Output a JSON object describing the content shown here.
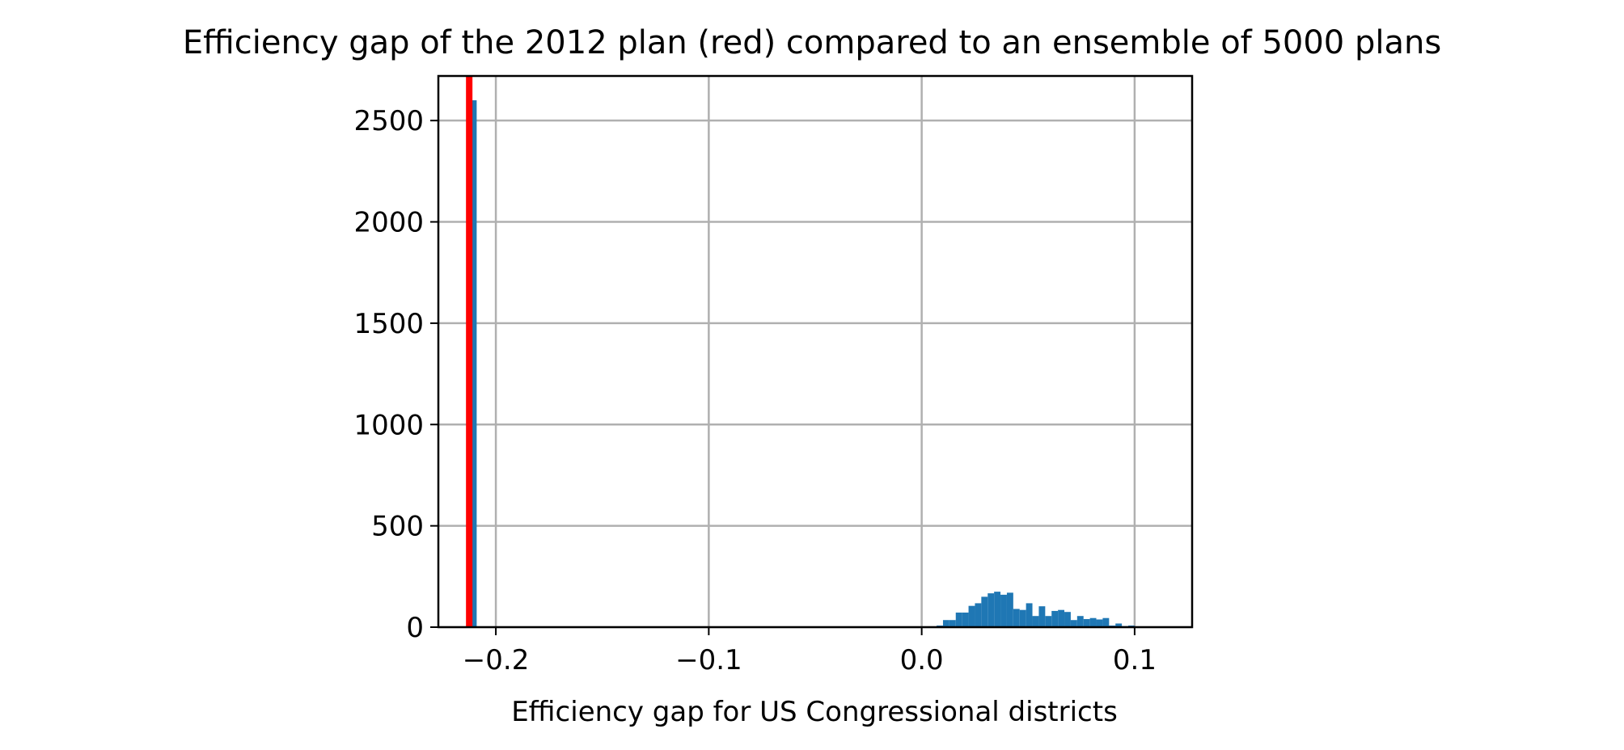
{
  "chart_data": {
    "type": "bar",
    "title": "Efficiency gap of the 2012 plan (red) compared to an ensemble of 5000 plans",
    "xlabel": "Efficiency gap for US Congressional districts",
    "ylabel": "",
    "xlim": [
      -0.227,
      0.127
    ],
    "ylim": [
      0,
      2720
    ],
    "xticks": [
      -0.2,
      -0.1,
      0.0,
      0.1
    ],
    "xtick_labels": [
      "−0.2",
      "−0.1",
      "0.0",
      "0.1"
    ],
    "yticks": [
      0,
      500,
      1000,
      1500,
      2000,
      2500
    ],
    "ytick_labels": [
      "0",
      "500",
      "1000",
      "1500",
      "2000",
      "2500"
    ],
    "grid": true,
    "bin_width": 0.003,
    "bins": [
      {
        "x": -0.2105,
        "count": 2600
      },
      {
        "x": 0.0085,
        "count": 8
      },
      {
        "x": 0.0115,
        "count": 35
      },
      {
        "x": 0.0145,
        "count": 35
      },
      {
        "x": 0.0175,
        "count": 72
      },
      {
        "x": 0.0205,
        "count": 72
      },
      {
        "x": 0.0235,
        "count": 105
      },
      {
        "x": 0.0265,
        "count": 118
      },
      {
        "x": 0.0295,
        "count": 150
      },
      {
        "x": 0.0325,
        "count": 167
      },
      {
        "x": 0.0355,
        "count": 175
      },
      {
        "x": 0.0385,
        "count": 160
      },
      {
        "x": 0.0415,
        "count": 170
      },
      {
        "x": 0.0445,
        "count": 90
      },
      {
        "x": 0.0475,
        "count": 85
      },
      {
        "x": 0.0505,
        "count": 118
      },
      {
        "x": 0.0535,
        "count": 55
      },
      {
        "x": 0.0565,
        "count": 103
      },
      {
        "x": 0.0595,
        "count": 55
      },
      {
        "x": 0.0625,
        "count": 80
      },
      {
        "x": 0.0655,
        "count": 85
      },
      {
        "x": 0.0685,
        "count": 75
      },
      {
        "x": 0.0715,
        "count": 35
      },
      {
        "x": 0.0745,
        "count": 55
      },
      {
        "x": 0.0775,
        "count": 40
      },
      {
        "x": 0.0805,
        "count": 45
      },
      {
        "x": 0.0835,
        "count": 38
      },
      {
        "x": 0.0865,
        "count": 45
      },
      {
        "x": 0.0895,
        "count": 8
      },
      {
        "x": 0.0925,
        "count": 18
      },
      {
        "x": 0.0955,
        "count": 5
      },
      {
        "x": 0.0985,
        "count": 8
      }
    ],
    "reference_line": {
      "x": -0.2125,
      "color": "#ff0000"
    },
    "bar_color": "#1f77b4",
    "grid_color": "#b0b0b0"
  }
}
